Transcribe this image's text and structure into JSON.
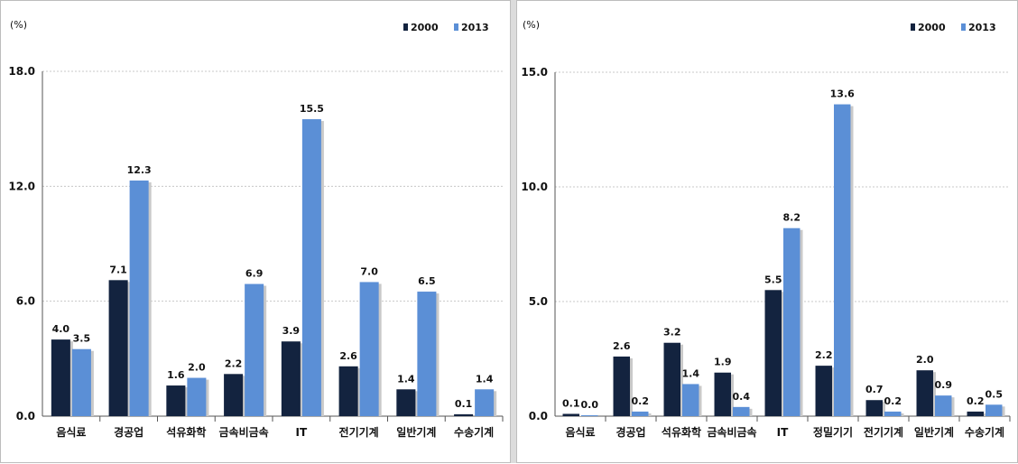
{
  "chart_data": [
    {
      "type": "bar",
      "ylabel": "(%)",
      "ylim": [
        0,
        18
      ],
      "yticks": [
        "0.0",
        "6.0",
        "12.0",
        "18.0"
      ],
      "ytick_values": [
        0,
        6,
        12,
        18
      ],
      "grid": true,
      "legend_position": "top-right",
      "categories": [
        "음식료",
        "경공업",
        "석유화학",
        "금속비금속",
        "IT",
        "전기기계",
        "일반기계",
        "수송기계"
      ],
      "series": [
        {
          "name": "2000",
          "color": "#13233f",
          "values": [
            4.0,
            7.1,
            1.6,
            2.2,
            3.9,
            2.6,
            1.4,
            0.1
          ],
          "labels": [
            "4.0",
            "7.1",
            "1.6",
            "2.2",
            "3.9",
            "2.6",
            "1.4",
            "0.1"
          ]
        },
        {
          "name": "2013",
          "color": "#5b8fd6",
          "values": [
            3.5,
            12.3,
            2.0,
            6.9,
            15.5,
            7.0,
            6.5,
            1.4
          ],
          "labels": [
            "3.5",
            "12.3",
            "2.0",
            "6.9",
            "15.5",
            "7.0",
            "6.5",
            "1.4"
          ]
        }
      ]
    },
    {
      "type": "bar",
      "ylabel": "(%)",
      "ylim": [
        0,
        15
      ],
      "yticks": [
        "0.0",
        "5.0",
        "10.0",
        "15.0"
      ],
      "ytick_values": [
        0,
        5,
        10,
        15
      ],
      "grid": true,
      "legend_position": "top-right",
      "categories": [
        "음식료",
        "경공업",
        "석유화학",
        "금속비금속",
        "IT",
        "정밀기기",
        "전기기계",
        "일반기계",
        "수송기계"
      ],
      "series": [
        {
          "name": "2000",
          "color": "#13233f",
          "values": [
            0.1,
            2.6,
            3.2,
            1.9,
            5.5,
            2.2,
            0.7,
            2.0,
            0.2
          ],
          "labels": [
            "0.1",
            "2.6",
            "3.2",
            "1.9",
            "5.5",
            "2.2",
            "0.7",
            "2.0",
            "0.2"
          ]
        },
        {
          "name": "2013",
          "color": "#5b8fd6",
          "values": [
            0.0,
            0.2,
            1.4,
            0.4,
            8.2,
            13.6,
            0.2,
            0.9,
            0.5
          ],
          "labels": [
            "0.0",
            "0.2",
            "1.4",
            "0.4",
            "8.2",
            "13.6",
            "0.2",
            "0.9",
            "0.5"
          ]
        }
      ]
    }
  ]
}
